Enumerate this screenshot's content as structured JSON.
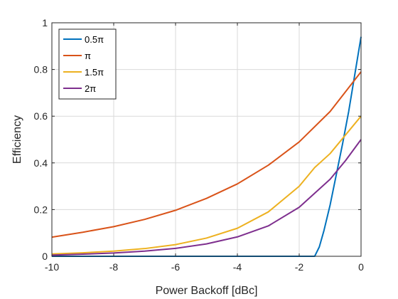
{
  "chart_data": {
    "type": "line",
    "title": "",
    "xlabel": "Power Backoff [dBc]",
    "ylabel": "Efficiency",
    "xlim": [
      -10,
      0
    ],
    "ylim": [
      0,
      1
    ],
    "xticks": [
      -10,
      -8,
      -6,
      -4,
      -2,
      0
    ],
    "yticks": [
      0,
      0.2,
      0.4,
      0.6,
      0.8,
      1
    ],
    "xtick_labels": [
      "-10",
      "-8",
      "-6",
      "-4",
      "-2",
      "0"
    ],
    "ytick_labels": [
      "0",
      "0.2",
      "0.4",
      "0.6",
      "0.8",
      "1"
    ],
    "grid": true,
    "legend_position": "top-left",
    "series": [
      {
        "name": "0.5π",
        "color": "#0072BD",
        "x": [
          -10,
          -1.5,
          -1.35,
          -1.2,
          -1.0,
          -0.8,
          -0.6,
          -0.4,
          -0.2,
          0
        ],
        "y": [
          0,
          0,
          0.04,
          0.11,
          0.22,
          0.35,
          0.48,
          0.62,
          0.78,
          0.94
        ]
      },
      {
        "name": "π",
        "color": "#D95319",
        "x": [
          -10,
          -9,
          -8,
          -7,
          -6,
          -5,
          -4,
          -3,
          -2,
          -1,
          0
        ],
        "y": [
          0.082,
          0.103,
          0.127,
          0.158,
          0.197,
          0.248,
          0.31,
          0.39,
          0.49,
          0.62,
          0.79
        ]
      },
      {
        "name": "1.5π",
        "color": "#EDB120",
        "x": [
          -10,
          -9,
          -8,
          -7,
          -6,
          -5,
          -4,
          -3,
          -2,
          -1.5,
          -1,
          -0.5,
          0
        ],
        "y": [
          0.01,
          0.015,
          0.022,
          0.033,
          0.05,
          0.078,
          0.12,
          0.19,
          0.3,
          0.38,
          0.44,
          0.52,
          0.6
        ]
      },
      {
        "name": "2π",
        "color": "#7E2F8E",
        "x": [
          -10,
          -9,
          -8,
          -7,
          -6,
          -5,
          -4,
          -3,
          -2,
          -1,
          -0.5,
          0
        ],
        "y": [
          0.005,
          0.009,
          0.014,
          0.022,
          0.034,
          0.053,
          0.083,
          0.13,
          0.21,
          0.33,
          0.41,
          0.5
        ]
      }
    ]
  }
}
